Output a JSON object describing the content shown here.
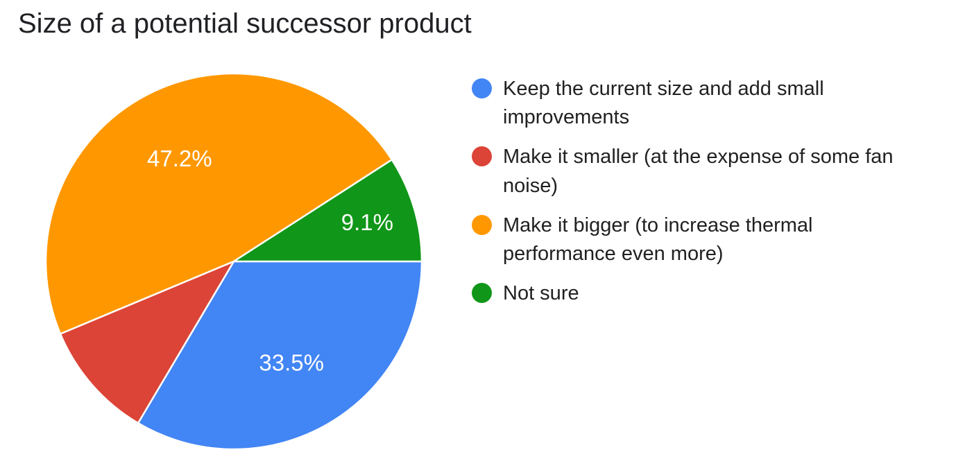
{
  "title": "Size of a potential successor product",
  "chart_data": {
    "type": "pie",
    "title": "Size of a potential successor product",
    "legend_position": "right",
    "start_angle_deg": 90,
    "direction": "clockwise",
    "pct_label_color": "#ffffff",
    "slice_separator_color": "#ffffff",
    "slices": [
      {
        "label": "Keep the current size and add small improvements",
        "value": 33.5,
        "pct_label": "33.5%",
        "show_pct": true,
        "color": "#4285F4"
      },
      {
        "label": "Make it smaller (at the expense of some fan noise)",
        "value": 10.2,
        "pct_label": "",
        "show_pct": false,
        "color": "#DB4437"
      },
      {
        "label": "Make it bigger (to increase thermal performance even more)",
        "value": 47.2,
        "pct_label": "47.2%",
        "show_pct": true,
        "color": "#FF9800"
      },
      {
        "label": "Not sure",
        "value": 9.1,
        "pct_label": "9.1%",
        "show_pct": true,
        "color": "#109618"
      }
    ]
  }
}
